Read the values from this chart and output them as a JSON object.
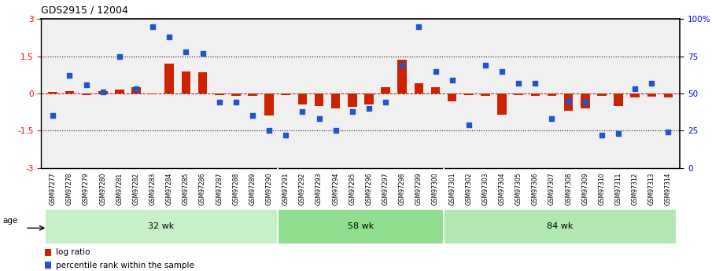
{
  "title": "GDS2915 / 12004",
  "samples": [
    "GSM97277",
    "GSM97278",
    "GSM97279",
    "GSM97280",
    "GSM97281",
    "GSM97282",
    "GSM97283",
    "GSM97284",
    "GSM97285",
    "GSM97286",
    "GSM97287",
    "GSM97288",
    "GSM97289",
    "GSM97290",
    "GSM97291",
    "GSM97292",
    "GSM97293",
    "GSM97294",
    "GSM97295",
    "GSM97296",
    "GSM97297",
    "GSM97298",
    "GSM97299",
    "GSM97300",
    "GSM97301",
    "GSM97302",
    "GSM97303",
    "GSM97304",
    "GSM97305",
    "GSM97306",
    "GSM97307",
    "GSM97308",
    "GSM97309",
    "GSM97310",
    "GSM97311",
    "GSM97312",
    "GSM97313",
    "GSM97314"
  ],
  "log_ratio": [
    0.05,
    0.08,
    -0.05,
    0.1,
    0.15,
    0.25,
    -0.02,
    1.2,
    0.9,
    0.85,
    -0.05,
    -0.08,
    -0.1,
    -0.9,
    -0.05,
    -0.45,
    -0.5,
    -0.6,
    -0.55,
    -0.45,
    0.25,
    1.35,
    0.4,
    0.25,
    -0.3,
    -0.05,
    -0.08,
    -0.85,
    -0.05,
    -0.08,
    -0.1,
    -0.7,
    -0.6,
    -0.08,
    -0.5,
    -0.15,
    -0.12,
    -0.15
  ],
  "percentile_pct": [
    35,
    62,
    56,
    51,
    75,
    53,
    95,
    88,
    78,
    77,
    44,
    44,
    35,
    25,
    22,
    38,
    33,
    25,
    38,
    40,
    44,
    69,
    95,
    65,
    59,
    29,
    69,
    65,
    57,
    57,
    33,
    45,
    44,
    22,
    23,
    53,
    57,
    24
  ],
  "groups": [
    {
      "label": "32 wk",
      "start": 0,
      "end": 14
    },
    {
      "label": "58 wk",
      "start": 14,
      "end": 24
    },
    {
      "label": "84 wk",
      "start": 24,
      "end": 38
    }
  ],
  "group_colors": [
    "#c8f0c8",
    "#90dd90",
    "#b0e8b0"
  ],
  "ylim_left": [
    -3,
    3
  ],
  "ylim_right": [
    0,
    100
  ],
  "yticks_left": [
    -3,
    -1.5,
    0,
    1.5,
    3
  ],
  "yticks_right": [
    0,
    25,
    50,
    75,
    100
  ],
  "ytick_right_labels": [
    "0",
    "25",
    "50",
    "75",
    "100%"
  ],
  "bar_color": "#cc2200",
  "scatter_color": "#2255cc",
  "hline_color": "#cc0000",
  "dotted_line_color": "#111111",
  "background_color": "#ffffff",
  "plot_bg_color": "#f0f0f0",
  "bar_width": 0.55,
  "legend_bar_label": "log ratio",
  "legend_scatter_label": "percentile rank within the sample",
  "age_label_color": "#000000",
  "xticklabel_bg": "#d8d8d8"
}
